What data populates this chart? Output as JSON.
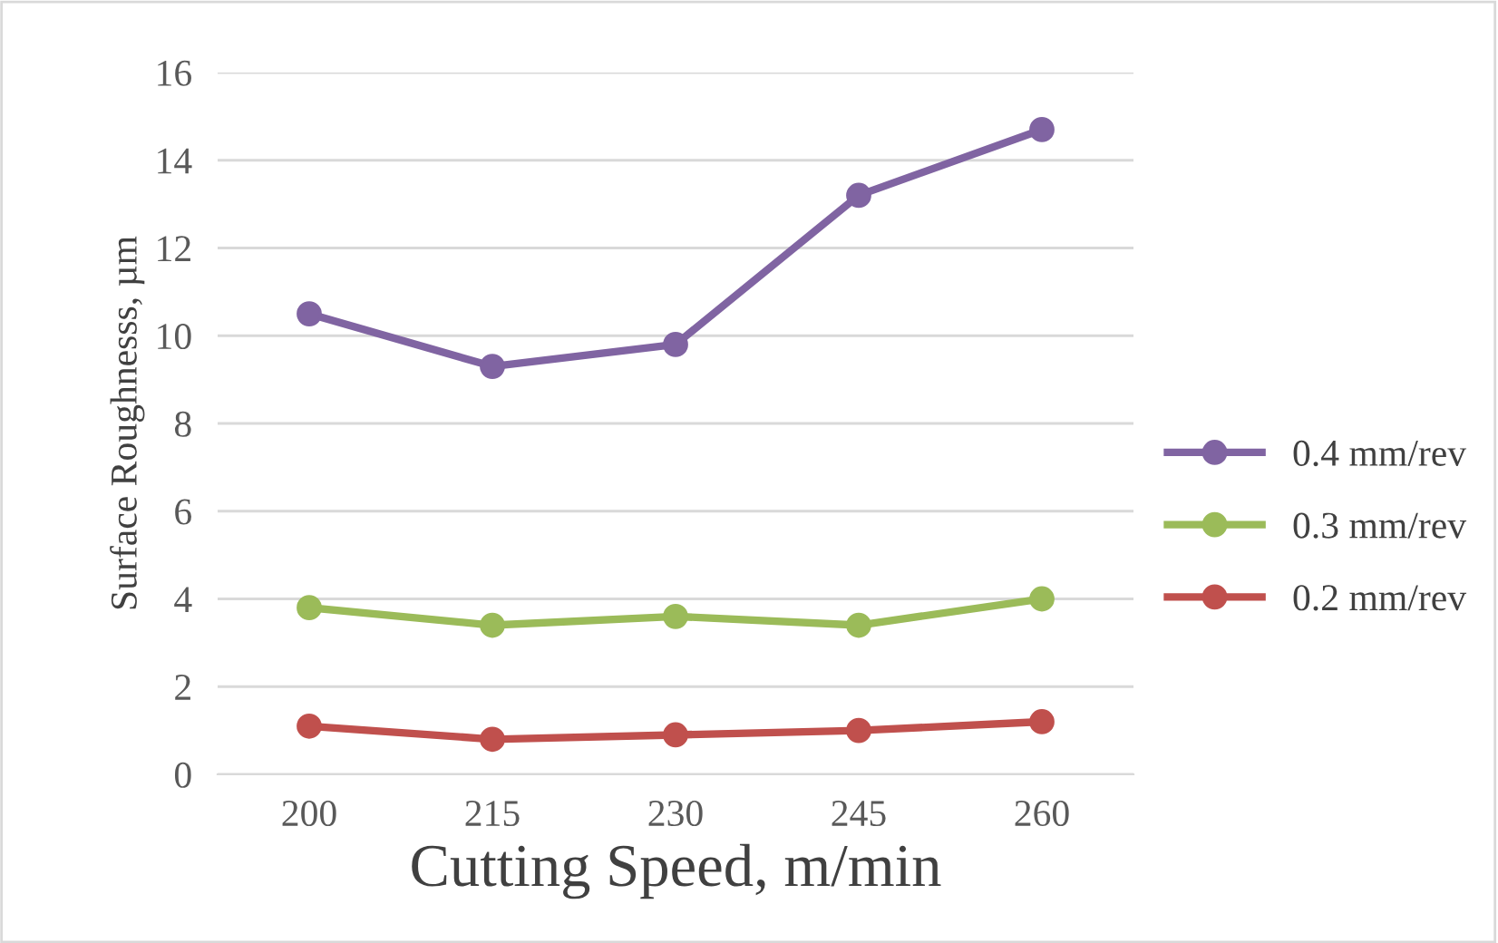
{
  "chart_data": {
    "type": "line",
    "xlabel": "Cutting Speed, m/min",
    "ylabel": "Surface Roughnesss, µm",
    "categories": [
      "200",
      "215",
      "230",
      "245",
      "260"
    ],
    "series": [
      {
        "name": "0.4 mm/rev",
        "color": "#8064a2",
        "values": [
          10.5,
          9.3,
          9.8,
          13.2,
          14.7
        ]
      },
      {
        "name": "0.3 mm/rev",
        "color": "#9bbb59",
        "values": [
          3.8,
          3.4,
          3.6,
          3.4,
          4.0
        ]
      },
      {
        "name": "0.2 mm/rev",
        "color": "#c0504d",
        "values": [
          1.1,
          0.8,
          0.9,
          1.0,
          1.2
        ]
      }
    ],
    "ylim": [
      0,
      16
    ],
    "yticks": [
      0,
      2,
      4,
      6,
      8,
      10,
      12,
      14,
      16
    ],
    "grid": "y",
    "legend": "right",
    "marker": "circle",
    "line_style": "solid"
  }
}
